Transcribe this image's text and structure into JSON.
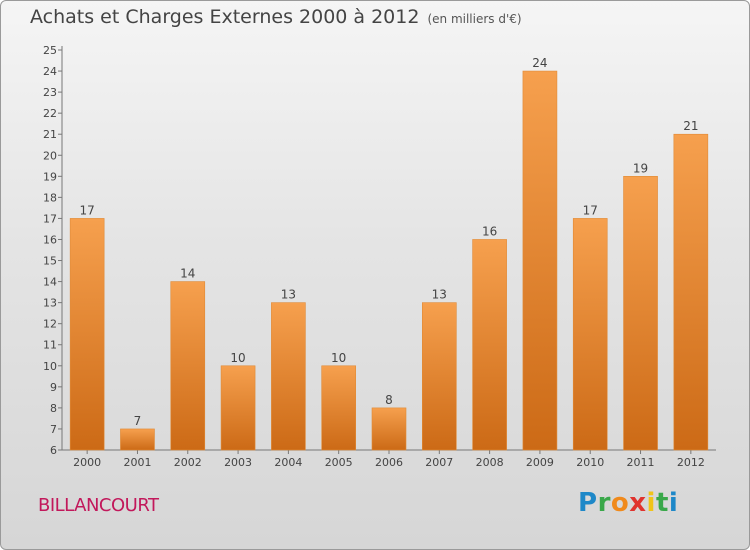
{
  "header": {
    "title": "Achats et Charges Externes 2000 à 2012",
    "subtitle": "(en milliers d'€)"
  },
  "footer": {
    "city": "BILLANCOURT",
    "logo": {
      "letters": [
        "P",
        "r",
        "o",
        "x",
        "i",
        "t",
        "i"
      ],
      "colors": [
        "#1e88c8",
        "#3aa84a",
        "#f08a1c",
        "#e0332e",
        "#f0c419",
        "#3aa84a",
        "#1e88c8"
      ]
    }
  },
  "chart_data": {
    "type": "bar",
    "categories": [
      "2000",
      "2001",
      "2002",
      "2003",
      "2004",
      "2005",
      "2006",
      "2007",
      "2008",
      "2009",
      "2010",
      "2011",
      "2012"
    ],
    "values": [
      17,
      7,
      14,
      10,
      13,
      10,
      8,
      13,
      16,
      24,
      17,
      19,
      21
    ],
    "title": "Achats et Charges Externes 2000 à 2012",
    "subtitle": "(en milliers d'€)",
    "xlabel": "",
    "ylabel": "",
    "ylim": [
      6,
      25
    ],
    "yticks": [
      6,
      7,
      8,
      9,
      10,
      11,
      12,
      13,
      14,
      15,
      16,
      17,
      18,
      19,
      20,
      21,
      22,
      23,
      24,
      25
    ],
    "grid": false,
    "bar_color_top": "#f6a04e",
    "bar_color_bottom": "#cc6a16"
  }
}
